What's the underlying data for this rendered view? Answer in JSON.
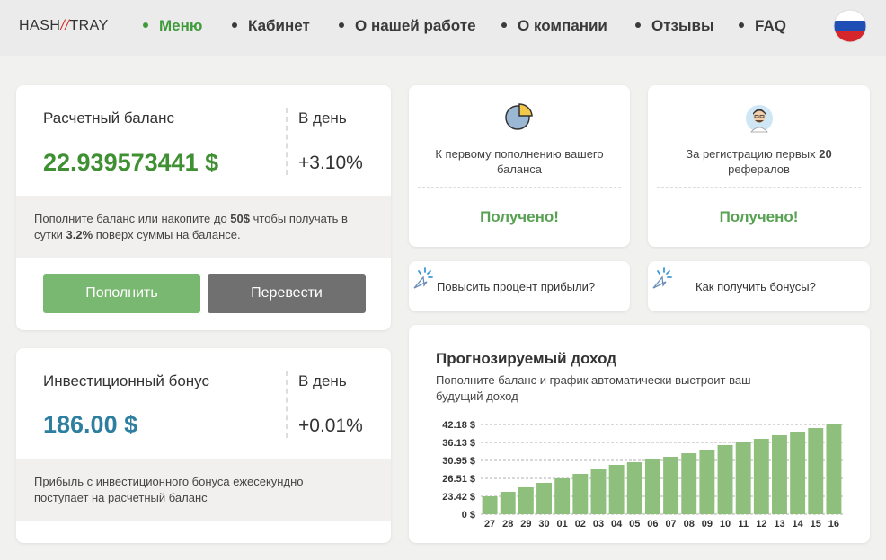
{
  "header": {
    "logo": {
      "left": "HASH",
      "slash": "//",
      "right": "TRAY"
    },
    "nav": [
      "Меню",
      "Кабинет",
      "О нашей работе",
      "О компании",
      "Отзывы",
      "FAQ"
    ]
  },
  "balance": {
    "title": "Расчетный баланс",
    "amount": "22.939573441 $",
    "per_day_label": "В день",
    "per_day": "+3.10%",
    "hint": {
      "before": "Пополните баланс или накопите до ",
      "amount": "50$",
      "middle": " чтобы получать в сутки ",
      "rate": "3.2%",
      "after": " поверх суммы на балансе."
    },
    "buttons": [
      "Пополнить",
      "Перевести"
    ]
  },
  "bonus": {
    "title": "Инвестиционный бонус",
    "amount": "186.00 $",
    "per_day_label": "В день",
    "per_day": "+0.01%",
    "hint": "Прибыль с инвестиционного бонуса ежесекундно поступает на расчетный баланс"
  },
  "rewards": [
    {
      "text": "К первому пополнению вашего баланса",
      "status": "Получено!"
    },
    {
      "text_before": "За регистрацию первых ",
      "count": "20",
      "text_after": " рефералов",
      "status": "Получено!"
    }
  ],
  "links": [
    "Повысить процент прибыли?",
    "Как получить бонусы?"
  ],
  "forecast": {
    "title": "Прогнозируемый доход",
    "subtitle": "Пополните баланс и график автоматически выстроит ваш будущий доход",
    "chart": {
      "type": "bar",
      "categories": [
        "27",
        "28",
        "29",
        "30",
        "01",
        "02",
        "03",
        "04",
        "05",
        "06",
        "07",
        "08",
        "09",
        "10",
        "11",
        "12",
        "13",
        "14",
        "15",
        "16"
      ],
      "values": [
        23.42,
        24.19,
        24.97,
        25.74,
        26.51,
        27.62,
        28.73,
        29.84,
        30.51,
        31.21,
        31.99,
        33.02,
        34.06,
        35.36,
        36.43,
        37.34,
        38.55,
        39.76,
        40.97,
        42.18
      ],
      "color": "#8fbf7d",
      "ylim": [
        0,
        42.18
      ],
      "yticks": [
        {
          "value": 0,
          "label": "0 $"
        },
        {
          "value": 23.42,
          "label": "23.42 $"
        },
        {
          "value": 26.51,
          "label": "26.51 $"
        },
        {
          "value": 30.95,
          "label": "30.95 $"
        },
        {
          "value": 36.13,
          "label": "36.13 $"
        },
        {
          "value": 42.18,
          "label": "42.18 $"
        }
      ],
      "grid": true
    }
  }
}
